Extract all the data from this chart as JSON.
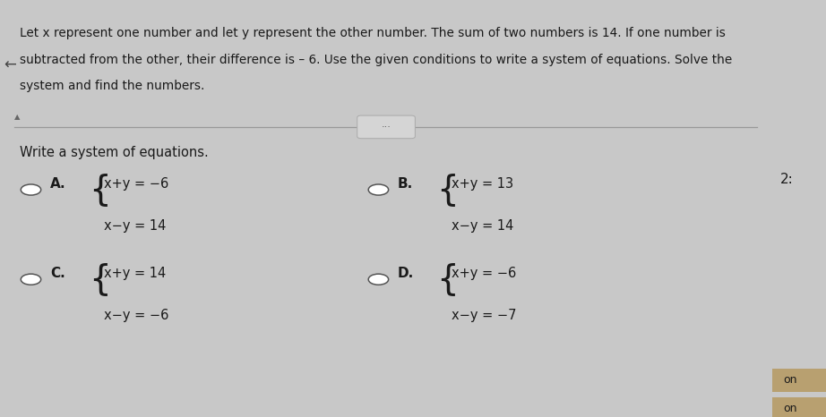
{
  "bg_color": "#c8c8c8",
  "panel_color": "#e2e2e2",
  "right_panel_color": "#d8d8d8",
  "header_bg": "#e2e2e2",
  "header_text_line1": "Let x represent one number and let y represent the other number. The sum of two numbers is 14. If one number is",
  "header_text_line2": "subtracted from the other, their difference is – 6. Use the given conditions to write a system of equations. Solve the",
  "header_text_line3": "system and find the numbers.",
  "subheading": "Write a system of equations.",
  "options": [
    {
      "label": "A.",
      "eq1": "x+y = −6",
      "eq2": "x−y = 14"
    },
    {
      "label": "B.",
      "eq1": "x+y = 13",
      "eq2": "x−y = 14"
    },
    {
      "label": "C.",
      "eq1": "x+y = 14",
      "eq2": "x−y = −6"
    },
    {
      "label": "D.",
      "eq1": "x+y = −6",
      "eq2": "x−y = −7"
    }
  ],
  "right_label": "2:",
  "bottom_label": "on",
  "text_color": "#1a1a1a",
  "header_fontsize": 9.8,
  "subheading_fontsize": 10.5,
  "option_label_fontsize": 11,
  "eq_fontsize": 10.5,
  "radio_color": "#555555",
  "divider_color": "#999999",
  "btn_color": "#d5d5d5"
}
